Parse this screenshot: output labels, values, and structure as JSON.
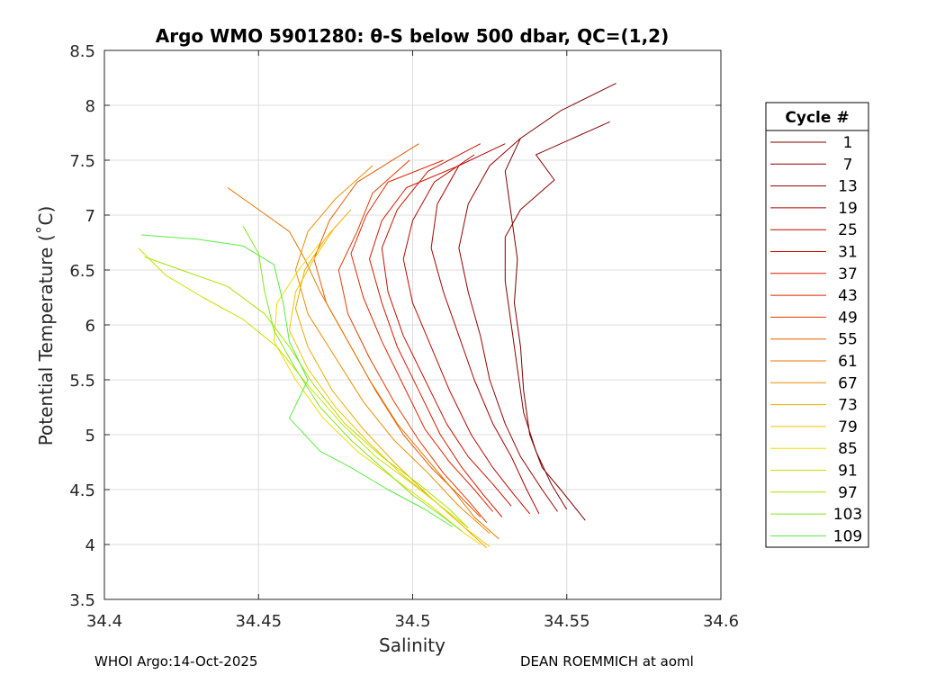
{
  "chart_data": {
    "type": "line",
    "title": "Argo WMO 5901280: θ-S below 500 dbar,  QC=(1,2)",
    "xlabel": "Salinity",
    "ylabel": "Potential Temperature (˚C)",
    "xlim": [
      34.4,
      34.6
    ],
    "ylim": [
      3.5,
      8.5
    ],
    "xticks": [
      "34.4",
      "34.45",
      "34.5",
      "34.55",
      "34.6"
    ],
    "yticks": [
      "3.5",
      "4",
      "4.5",
      "5",
      "5.5",
      "6",
      "6.5",
      "7",
      "7.5",
      "8",
      "8.5"
    ],
    "grid": true,
    "legend": {
      "title": "Cycle #",
      "placement": "right-outside",
      "entries": [
        "1",
        "7",
        "13",
        "19",
        "25",
        "31",
        "37",
        "43",
        "49",
        "55",
        "61",
        "67",
        "73",
        "79",
        "85",
        "91",
        "97",
        "103",
        "109"
      ],
      "colors": [
        "#7a0000",
        "#870000",
        "#960000",
        "#a80000",
        "#b80800",
        "#c81000",
        "#d61800",
        "#e22600",
        "#e63a00",
        "#e85a00",
        "#e87400",
        "#ea8e00",
        "#eeaa00",
        "#f2c400",
        "#eedc00",
        "#cce000",
        "#a8e400",
        "#80e820",
        "#58ec40"
      ]
    },
    "series": [
      {
        "name": "1",
        "color": "#7a0000",
        "values": [
          [
            34.566,
            8.2
          ],
          [
            34.548,
            7.95
          ],
          [
            34.535,
            7.7
          ],
          [
            34.53,
            7.4
          ],
          [
            34.532,
            7.0
          ],
          [
            34.534,
            6.6
          ],
          [
            34.533,
            6.2
          ],
          [
            34.535,
            5.8
          ],
          [
            34.536,
            5.4
          ],
          [
            34.538,
            5.0
          ],
          [
            34.542,
            4.7
          ],
          [
            34.548,
            4.5
          ],
          [
            34.556,
            4.22
          ]
        ]
      },
      {
        "name": "7",
        "color": "#870000",
        "values": [
          [
            34.564,
            7.85
          ],
          [
            34.54,
            7.55
          ],
          [
            34.546,
            7.32
          ],
          [
            34.535,
            7.05
          ],
          [
            34.53,
            6.8
          ],
          [
            34.53,
            6.4
          ],
          [
            34.532,
            6.0
          ],
          [
            34.534,
            5.6
          ],
          [
            34.536,
            5.2
          ],
          [
            34.54,
            4.85
          ],
          [
            34.545,
            4.55
          ],
          [
            34.55,
            4.32
          ]
        ]
      },
      {
        "name": "13",
        "color": "#960000",
        "values": [
          [
            34.535,
            7.7
          ],
          [
            34.525,
            7.45
          ],
          [
            34.518,
            7.1
          ],
          [
            34.515,
            6.7
          ],
          [
            34.518,
            6.3
          ],
          [
            34.522,
            5.9
          ],
          [
            34.525,
            5.5
          ],
          [
            34.53,
            5.1
          ],
          [
            34.535,
            4.8
          ],
          [
            34.542,
            4.5
          ],
          [
            34.547,
            4.3
          ]
        ]
      },
      {
        "name": "19",
        "color": "#a80000",
        "values": [
          [
            34.53,
            7.65
          ],
          [
            34.515,
            7.45
          ],
          [
            34.508,
            7.1
          ],
          [
            34.506,
            6.7
          ],
          [
            34.51,
            6.3
          ],
          [
            34.515,
            5.9
          ],
          [
            34.52,
            5.5
          ],
          [
            34.526,
            5.1
          ],
          [
            34.532,
            4.8
          ],
          [
            34.537,
            4.5
          ],
          [
            34.541,
            4.28
          ]
        ]
      },
      {
        "name": "25",
        "color": "#b80800",
        "values": [
          [
            34.52,
            7.55
          ],
          [
            34.507,
            7.3
          ],
          [
            34.5,
            6.95
          ],
          [
            34.497,
            6.6
          ],
          [
            34.5,
            6.2
          ],
          [
            34.506,
            5.8
          ],
          [
            34.512,
            5.4
          ],
          [
            34.519,
            5.0
          ],
          [
            34.526,
            4.7
          ],
          [
            34.533,
            4.45
          ],
          [
            34.538,
            4.28
          ]
        ]
      },
      {
        "name": "31",
        "color": "#c81000",
        "values": [
          [
            34.522,
            7.65
          ],
          [
            34.505,
            7.4
          ],
          [
            34.495,
            7.05
          ],
          [
            34.49,
            6.7
          ],
          [
            34.492,
            6.3
          ],
          [
            34.497,
            5.9
          ],
          [
            34.504,
            5.5
          ],
          [
            34.511,
            5.1
          ],
          [
            34.518,
            4.8
          ],
          [
            34.526,
            4.55
          ],
          [
            34.532,
            4.35
          ]
        ]
      },
      {
        "name": "37",
        "color": "#d61800",
        "values": [
          [
            34.515,
            7.45
          ],
          [
            34.498,
            7.25
          ],
          [
            34.49,
            6.95
          ],
          [
            34.486,
            6.6
          ],
          [
            34.49,
            6.2
          ],
          [
            34.495,
            5.8
          ],
          [
            34.502,
            5.4
          ],
          [
            34.509,
            5.0
          ],
          [
            34.516,
            4.7
          ],
          [
            34.523,
            4.45
          ],
          [
            34.529,
            4.25
          ]
        ]
      },
      {
        "name": "43",
        "color": "#e22600",
        "values": [
          [
            34.51,
            7.5
          ],
          [
            34.492,
            7.3
          ],
          [
            34.485,
            7.0
          ],
          [
            34.48,
            6.65
          ],
          [
            34.484,
            6.25
          ],
          [
            34.49,
            5.85
          ],
          [
            34.497,
            5.45
          ],
          [
            34.504,
            5.05
          ],
          [
            34.512,
            4.75
          ],
          [
            34.52,
            4.5
          ],
          [
            34.526,
            4.3
          ]
        ]
      },
      {
        "name": "49",
        "color": "#e63a00",
        "values": [
          [
            34.499,
            7.5
          ],
          [
            34.487,
            7.2
          ],
          [
            34.482,
            6.85
          ],
          [
            34.476,
            6.5
          ],
          [
            34.479,
            6.1
          ],
          [
            34.486,
            5.7
          ],
          [
            34.494,
            5.3
          ],
          [
            34.502,
            4.95
          ],
          [
            34.51,
            4.65
          ],
          [
            34.518,
            4.4
          ],
          [
            34.524,
            4.2
          ]
        ]
      },
      {
        "name": "55",
        "color": "#e85a00",
        "values": [
          [
            34.502,
            7.65
          ],
          [
            34.482,
            7.3
          ],
          [
            34.473,
            6.95
          ],
          [
            34.468,
            6.6
          ],
          [
            34.472,
            6.2
          ],
          [
            34.48,
            5.8
          ],
          [
            34.488,
            5.4
          ],
          [
            34.497,
            5.0
          ],
          [
            34.506,
            4.7
          ],
          [
            34.515,
            4.45
          ],
          [
            34.522,
            4.25
          ]
        ]
      },
      {
        "name": "61",
        "color": "#e87400",
        "values": [
          [
            34.44,
            7.25
          ],
          [
            34.45,
            7.05
          ],
          [
            34.46,
            6.85
          ],
          [
            34.465,
            6.6
          ],
          [
            34.47,
            6.3
          ],
          [
            34.478,
            5.9
          ],
          [
            34.486,
            5.5
          ],
          [
            34.495,
            5.1
          ],
          [
            34.504,
            4.8
          ],
          [
            34.513,
            4.5
          ],
          [
            34.52,
            4.25
          ],
          [
            34.528,
            4.05
          ]
        ]
      },
      {
        "name": "67",
        "color": "#ea8e00",
        "values": [
          [
            34.487,
            7.45
          ],
          [
            34.475,
            7.15
          ],
          [
            34.466,
            6.85
          ],
          [
            34.462,
            6.5
          ],
          [
            34.466,
            6.1
          ],
          [
            34.475,
            5.7
          ],
          [
            34.484,
            5.3
          ],
          [
            34.494,
            4.95
          ],
          [
            34.505,
            4.65
          ],
          [
            34.515,
            4.35
          ],
          [
            34.525,
            4.1
          ]
        ]
      },
      {
        "name": "73",
        "color": "#eeaa00",
        "values": [
          [
            34.48,
            7.05
          ],
          [
            34.472,
            6.8
          ],
          [
            34.465,
            6.5
          ],
          [
            34.462,
            6.15
          ],
          [
            34.466,
            5.8
          ],
          [
            34.474,
            5.4
          ],
          [
            34.484,
            5.05
          ],
          [
            34.494,
            4.75
          ],
          [
            34.505,
            4.45
          ],
          [
            34.515,
            4.2
          ],
          [
            34.524,
            3.97
          ]
        ]
      },
      {
        "name": "79",
        "color": "#f2c400",
        "values": [
          [
            34.475,
            6.9
          ],
          [
            34.468,
            6.6
          ],
          [
            34.462,
            6.3
          ],
          [
            34.46,
            5.95
          ],
          [
            34.466,
            5.6
          ],
          [
            34.475,
            5.25
          ],
          [
            34.485,
            4.95
          ],
          [
            34.496,
            4.65
          ],
          [
            34.507,
            4.4
          ],
          [
            34.517,
            4.15
          ],
          [
            34.525,
            3.98
          ]
        ]
      },
      {
        "name": "85",
        "color": "#eedc00",
        "values": [
          [
            34.47,
            6.75
          ],
          [
            34.463,
            6.5
          ],
          [
            34.456,
            6.2
          ],
          [
            34.455,
            5.85
          ],
          [
            34.462,
            5.5
          ],
          [
            34.471,
            5.15
          ],
          [
            34.482,
            4.85
          ],
          [
            34.494,
            4.6
          ],
          [
            34.506,
            4.35
          ],
          [
            34.516,
            4.12
          ],
          [
            34.522,
            4.0
          ]
        ]
      },
      {
        "name": "91",
        "color": "#cce000",
        "values": [
          [
            34.411,
            6.7
          ],
          [
            34.42,
            6.45
          ],
          [
            34.432,
            6.25
          ],
          [
            34.445,
            6.05
          ],
          [
            34.456,
            5.8
          ],
          [
            34.466,
            5.45
          ],
          [
            34.477,
            5.1
          ],
          [
            34.488,
            4.8
          ],
          [
            34.5,
            4.55
          ],
          [
            34.51,
            4.33
          ],
          [
            34.518,
            4.15
          ]
        ]
      },
      {
        "name": "97",
        "color": "#a8e400",
        "values": [
          [
            34.413,
            6.62
          ],
          [
            34.425,
            6.5
          ],
          [
            34.44,
            6.35
          ],
          [
            34.452,
            6.1
          ],
          [
            34.46,
            5.8
          ],
          [
            34.468,
            5.45
          ],
          [
            34.478,
            5.1
          ],
          [
            34.49,
            4.8
          ],
          [
            34.502,
            4.55
          ],
          [
            34.512,
            4.32
          ],
          [
            34.518,
            4.15
          ]
        ]
      },
      {
        "name": "103",
        "color": "#80e820",
        "values": [
          [
            34.445,
            6.9
          ],
          [
            34.45,
            6.65
          ],
          [
            34.452,
            6.3
          ],
          [
            34.455,
            5.95
          ],
          [
            34.462,
            5.6
          ],
          [
            34.47,
            5.25
          ],
          [
            34.48,
            4.95
          ],
          [
            34.49,
            4.7
          ],
          [
            34.5,
            4.45
          ],
          [
            34.51,
            4.25
          ],
          [
            34.516,
            4.12
          ]
        ]
      },
      {
        "name": "109",
        "color": "#58ec40",
        "values": [
          [
            34.412,
            6.82
          ],
          [
            34.43,
            6.78
          ],
          [
            34.445,
            6.72
          ],
          [
            34.455,
            6.55
          ],
          [
            34.458,
            6.2
          ],
          [
            34.46,
            5.85
          ],
          [
            34.466,
            5.5
          ],
          [
            34.46,
            5.15
          ],
          [
            34.47,
            4.85
          ],
          [
            34.48,
            4.7
          ],
          [
            34.492,
            4.5
          ],
          [
            34.504,
            4.32
          ],
          [
            34.513,
            4.16
          ]
        ]
      }
    ]
  },
  "footer": {
    "left": "WHOI Argo:14-Oct-2025",
    "right": "DEAN ROEMMICH at aoml"
  }
}
